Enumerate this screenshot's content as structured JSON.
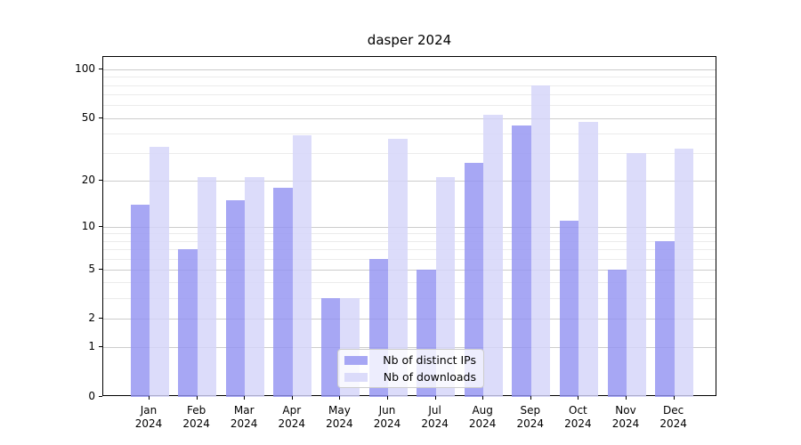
{
  "chart_data": {
    "type": "bar",
    "title": "dasper 2024",
    "months": [
      "Jan",
      "Feb",
      "Mar",
      "Apr",
      "May",
      "Jun",
      "Jul",
      "Aug",
      "Sep",
      "Oct",
      "Nov",
      "Dec"
    ],
    "year": "2024",
    "series": [
      {
        "name": "Nb of distinct IPs",
        "color": "#9494f2",
        "values": [
          14,
          7,
          15,
          18,
          3,
          6,
          5,
          26,
          45,
          11,
          5,
          8
        ]
      },
      {
        "name": "Nb of downloads",
        "color": "#d4d4f9",
        "values": [
          33,
          21,
          21,
          39,
          3,
          37,
          21,
          52,
          80,
          47,
          30,
          32
        ]
      }
    ],
    "y_scale": "log(1+x)",
    "y_ticks": [
      0,
      1,
      2,
      5,
      10,
      20,
      50,
      100
    ],
    "y_minor_gridlines": [
      3,
      4,
      6,
      7,
      8,
      9,
      30,
      40,
      60,
      70,
      80,
      90
    ],
    "ylim": [
      0,
      120
    ],
    "grid": true,
    "legend_position": "lower center"
  }
}
